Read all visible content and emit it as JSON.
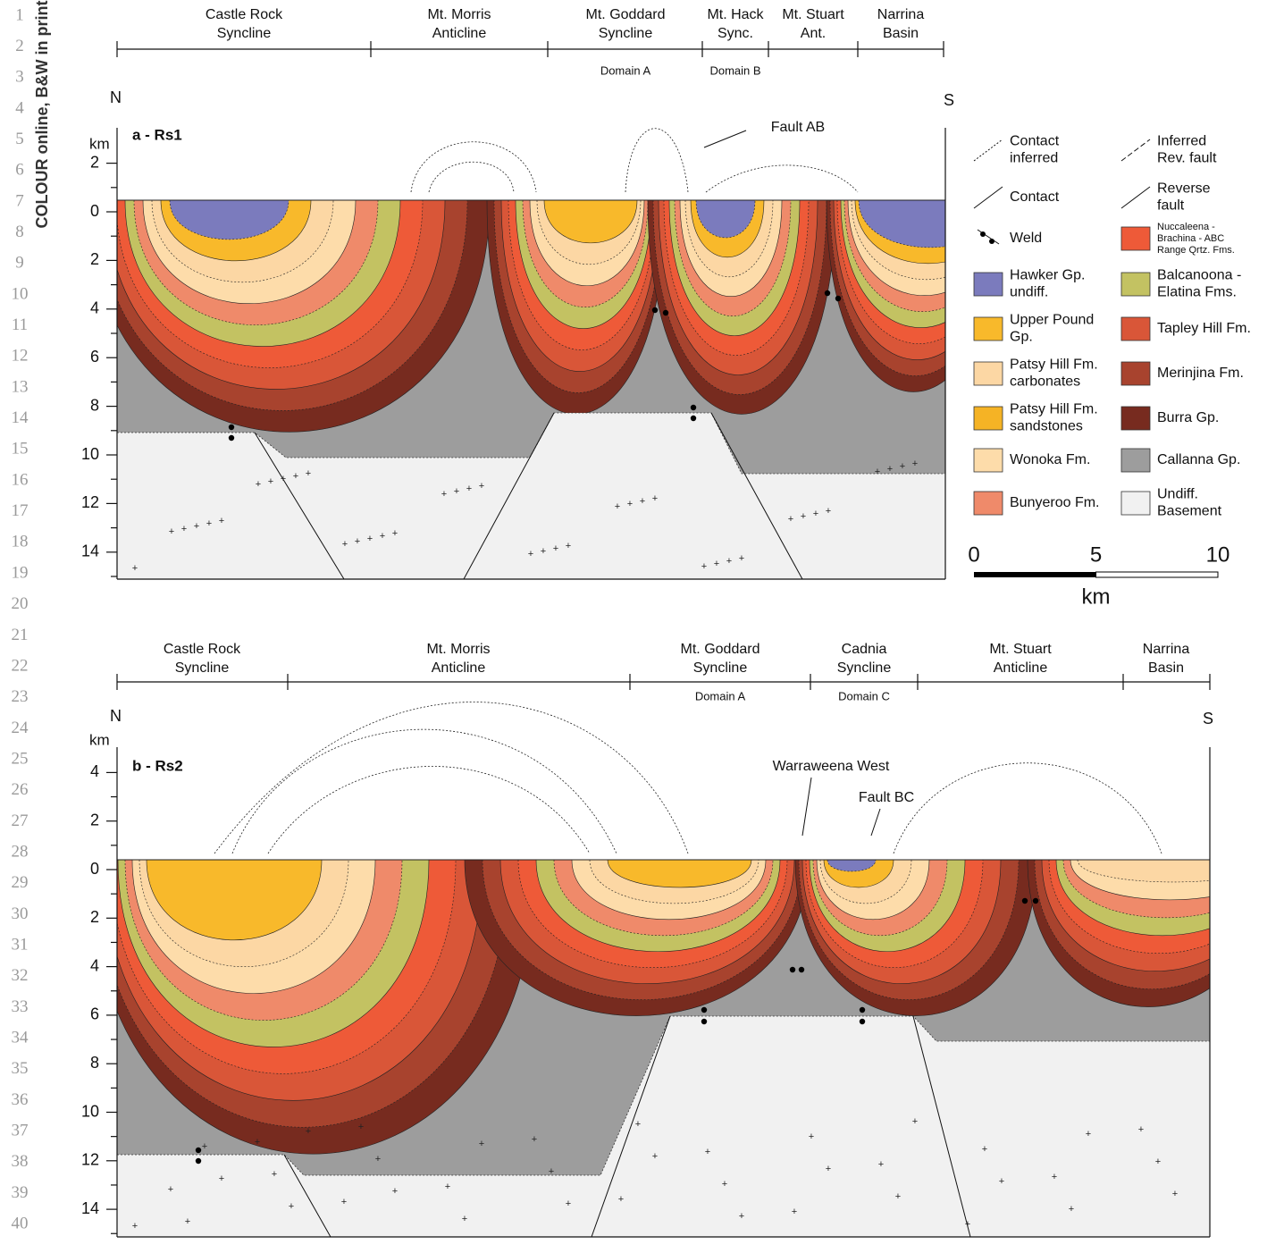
{
  "line_numbers": [
    "1",
    "2",
    "3",
    "4",
    "5",
    "6",
    "7",
    "8",
    "9",
    "10",
    "11",
    "12",
    "13",
    "14",
    "15",
    "16",
    "17",
    "18",
    "19",
    "20",
    "21",
    "22",
    "23",
    "24",
    "25",
    "26",
    "27",
    "28",
    "29",
    "30",
    "31",
    "32",
    "33",
    "34",
    "35",
    "36",
    "37",
    "38",
    "39",
    "40"
  ],
  "side_note": "COLOUR online, B&W in print",
  "panels": [
    {
      "title": "a - Rs1",
      "north": "N",
      "south": "S",
      "depth_unit": "km",
      "depth_ticks": [
        2,
        0,
        2,
        4,
        6,
        8,
        10,
        12,
        14
      ],
      "domains": [
        {
          "name": [
            "Castle Rock",
            "Syncline"
          ]
        },
        {
          "name": [
            "Mt. Morris",
            "Anticline"
          ]
        },
        {
          "name": [
            "Mt. Goddard",
            "Syncline"
          ],
          "domain": "Domain A"
        },
        {
          "name": [
            "Mt. Hack",
            "Sync."
          ],
          "domain": "Domain B"
        },
        {
          "name": [
            "Mt. Stuart",
            "Ant."
          ]
        },
        {
          "name": [
            "Narrina",
            "Basin"
          ]
        }
      ],
      "annotations": [
        "Fault AB"
      ]
    },
    {
      "title": "b - Rs2",
      "north": "N",
      "south": "S",
      "depth_unit": "km",
      "depth_ticks": [
        4,
        2,
        0,
        2,
        4,
        6,
        8,
        10,
        12,
        14
      ],
      "domains": [
        {
          "name": [
            "Castle Rock",
            "Syncline"
          ]
        },
        {
          "name": [
            "Mt. Morris",
            "Anticline"
          ]
        },
        {
          "name": [
            "Mt. Goddard",
            "Syncline"
          ],
          "domain": "Domain A"
        },
        {
          "name": [
            "Cadnia",
            "Syncline"
          ],
          "domain": "Domain C"
        },
        {
          "name": [
            "Mt. Stuart",
            "Anticline"
          ]
        },
        {
          "name": [
            "Narrina",
            "Basin"
          ]
        }
      ],
      "annotations": [
        "Warraweena West",
        "Fault BC"
      ]
    }
  ],
  "legend": [
    {
      "label": [
        "Contact",
        "inferred"
      ]
    },
    {
      "label": [
        "Contact"
      ]
    },
    {
      "label": [
        "Weld"
      ]
    },
    {
      "label": [
        "Hawker Gp.",
        "undiff."
      ],
      "color": "#7b7bbd"
    },
    {
      "label": [
        "Upper Pound",
        "Gp."
      ],
      "color": "#f8b92b"
    },
    {
      "label": [
        "Patsy Hill Fm.",
        "carbonates"
      ],
      "color": "#fcd7a4"
    },
    {
      "label": [
        "Patsy Hill Fm.",
        "sandstones"
      ],
      "color": "#f5b325"
    },
    {
      "label": [
        "Wonoka Fm."
      ],
      "color": "#fddcaa"
    },
    {
      "label": [
        "Bunyeroo Fm."
      ],
      "color": "#ef8a6a"
    },
    {
      "label": [
        "Inferred",
        "Rev. fault"
      ]
    },
    {
      "label": [
        "Reverse",
        "fault"
      ]
    },
    {
      "label": [
        "Nuccaleena -",
        "Brachina - ABC",
        "Range Qrtz. Fms."
      ],
      "color": "#ee5a38"
    },
    {
      "label": [
        "Balcanoona -",
        "Elatina Fms."
      ],
      "color": "#c3c262"
    },
    {
      "label": [
        "Tapley Hill Fm."
      ],
      "color": "#d95638"
    },
    {
      "label": [
        "Merinjina Fm."
      ],
      "color": "#a8432e"
    },
    {
      "label": [
        "Burra Gp."
      ],
      "color": "#772b1f"
    },
    {
      "label": [
        "Callanna Gp."
      ],
      "color": "#9d9d9d"
    },
    {
      "label": [
        "Undiff.",
        "Basement"
      ],
      "color": "#f1f1f1"
    }
  ],
  "scale_bar": {
    "ticks": [
      0,
      5,
      10
    ],
    "unit": "km"
  }
}
